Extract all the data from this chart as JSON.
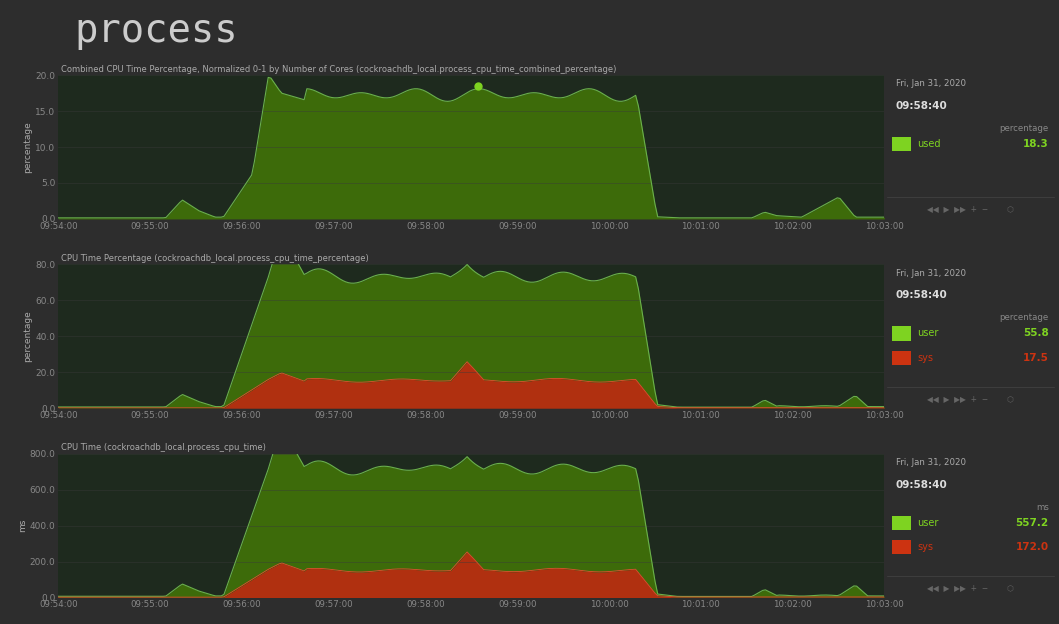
{
  "bg_color": "#2d2d2d",
  "panel_bg": "#252525",
  "chart_bg": "#1e2a1e",
  "title": "process",
  "title_color": "#cccccc",
  "title_fontsize": 28,
  "axis_label_color": "#aaaaaa",
  "tick_color": "#888888",
  "grid_color": "#3a3a3a",
  "green_fill": "#3d6b0a",
  "green_line": "#6ab04c",
  "bright_green": "#7ed321",
  "red_fill": "#b03010",
  "red_line": "#e05030",
  "chart1_title": "Combined CPU Time Percentage, Normalized 0-1 by Number of Cores (cockroachdb_local.process_cpu_time_combined_percentage)",
  "chart2_title": "CPU Time Percentage (cockroachdb_local.process_cpu_time_percentage)",
  "chart3_title": "CPU Time (cockroachdb_local.process_cpu_time)",
  "chart1_ylabel": "percentage",
  "chart2_ylabel": "percentage",
  "chart3_ylabel": "ms",
  "date_str": "Fri, Jan 31, 2020",
  "time_str": "09:58:40",
  "chart1_unit": "percentage",
  "chart2_unit": "percentage",
  "chart3_unit": "ms",
  "chart1_legend": [
    [
      "used",
      "18.3"
    ]
  ],
  "chart2_legend": [
    [
      "user",
      "55.8"
    ],
    [
      "sys",
      "17.5"
    ]
  ],
  "chart3_legend": [
    [
      "user",
      "557.2"
    ],
    [
      "sys",
      "172.0"
    ]
  ],
  "x_ticks": [
    "09:54:00",
    "09:55:00",
    "09:56:00",
    "09:57:00",
    "09:58:00",
    "09:59:00",
    "10:00:00",
    "10:01:00",
    "10:02:00",
    "10:03:00"
  ],
  "chart1_ylim": [
    0,
    20.0
  ],
  "chart1_yticks": [
    0.0,
    5.0,
    10.0,
    15.0,
    20.0
  ],
  "chart2_ylim": [
    0,
    80.0
  ],
  "chart2_yticks": [
    0.0,
    20.0,
    40.0,
    60.0,
    80.0
  ],
  "chart3_ylim": [
    0,
    800.0
  ],
  "chart3_yticks": [
    0.0,
    200.0,
    400.0,
    600.0,
    800.0
  ]
}
